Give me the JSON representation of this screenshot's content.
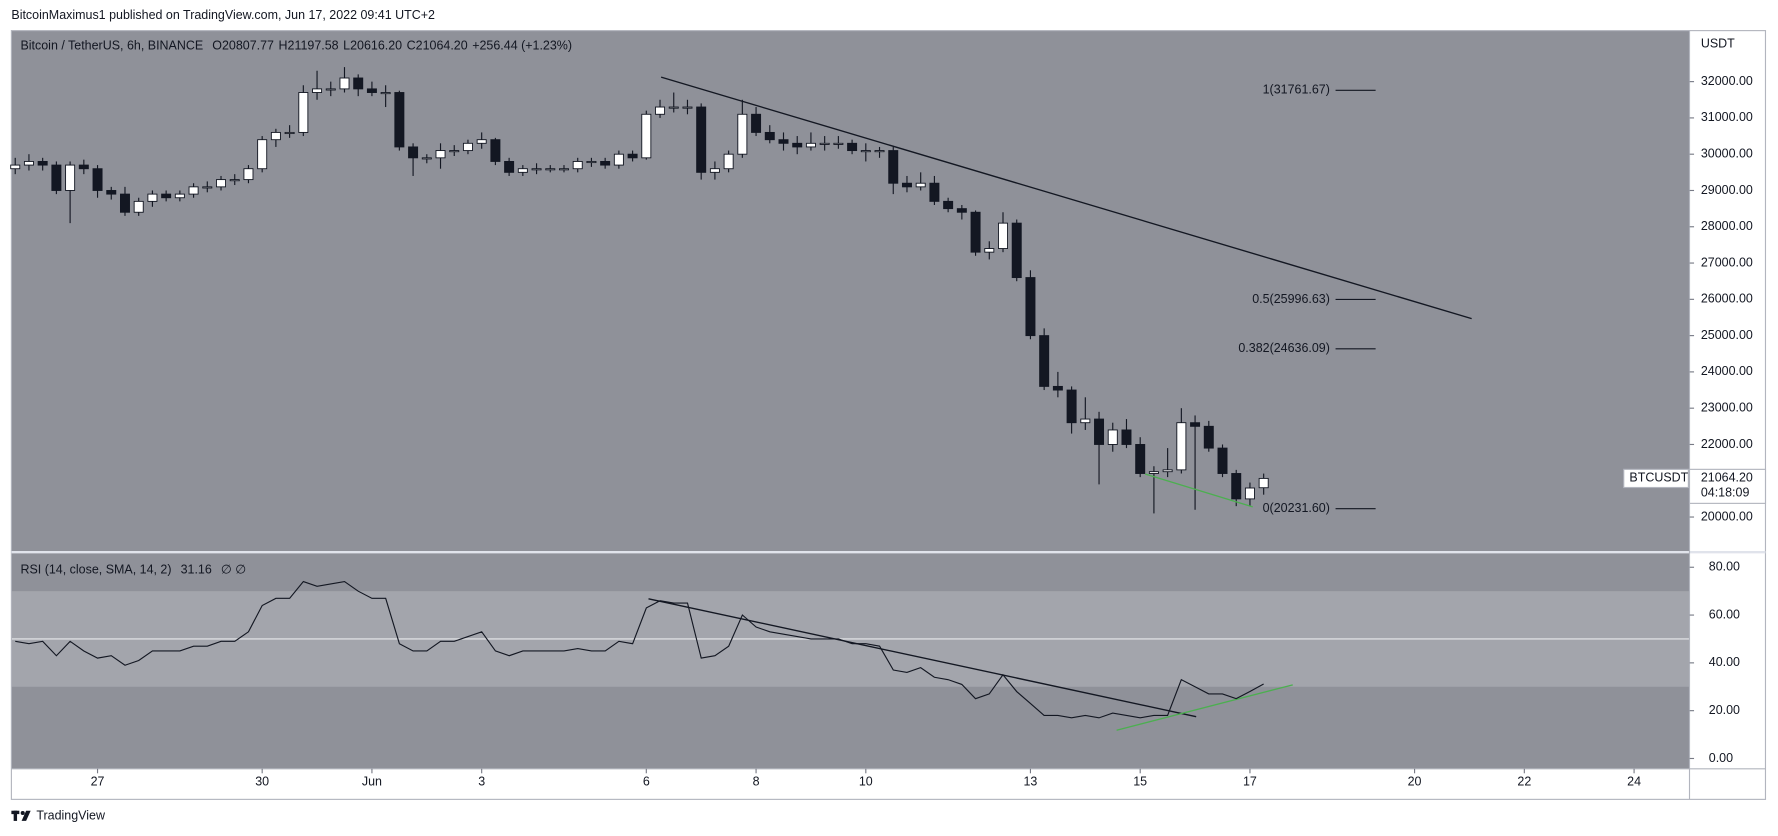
{
  "header": {
    "publisher": "BitcoinMaximus1 published on TradingView.com, Jun 17, 2022 09:41 UTC+2"
  },
  "chart_data": {
    "type": "candlestick",
    "symbol": "Bitcoin / TetherUS, 6h, BINANCE",
    "legend": [
      {
        "key": "O",
        "value": "20807.77"
      },
      {
        "key": "H",
        "value": "21197.58"
      },
      {
        "key": "L",
        "value": "20616.20"
      },
      {
        "key": "C",
        "value": "21064.20"
      }
    ],
    "change": "+256.44 (+1.23%)",
    "x": [
      -1.5,
      -1.25,
      -1,
      -0.75,
      -0.5,
      -0.25,
      0,
      0.25,
      0.5,
      0.75,
      1,
      1.25,
      1.5,
      1.75,
      2,
      2.25,
      2.5,
      2.75,
      3,
      3.25,
      3.5,
      3.75,
      4,
      4.25,
      4.5,
      4.75,
      5,
      5.25,
      5.5,
      5.75,
      6,
      6.25,
      6.5,
      6.75,
      7,
      7.25,
      7.5,
      7.75,
      8,
      8.25,
      8.5,
      8.75,
      9,
      9.25,
      9.5,
      9.75,
      10,
      10.25,
      10.5,
      10.75,
      11,
      11.25,
      11.5,
      11.75,
      12,
      12.25,
      12.5,
      12.75,
      13,
      13.25,
      13.5,
      13.75,
      14,
      14.25,
      14.5,
      14.75,
      15,
      15.25,
      15.5,
      15.75,
      16,
      16.25,
      16.5,
      16.75,
      17,
      17.25,
      17.5,
      17.75,
      18,
      18.25,
      18.5,
      18.75,
      19,
      19.25,
      19.5,
      19.75,
      20,
      20.25,
      20.5,
      20.75,
      21,
      21.25
    ],
    "ohlc": [
      [
        29600,
        29900,
        29450,
        29700
      ],
      [
        29700,
        30000,
        29550,
        29800
      ],
      [
        29800,
        29900,
        29550,
        29700
      ],
      [
        29700,
        29800,
        28900,
        29000
      ],
      [
        29000,
        29800,
        28100,
        29700
      ],
      [
        29700,
        29850,
        29450,
        29600
      ],
      [
        29600,
        29700,
        28800,
        29000
      ],
      [
        29000,
        29100,
        28750,
        28900
      ],
      [
        28900,
        29100,
        28300,
        28400
      ],
      [
        28400,
        28800,
        28300,
        28700
      ],
      [
        28700,
        29000,
        28550,
        28900
      ],
      [
        28900,
        29000,
        28700,
        28800
      ],
      [
        28800,
        29000,
        28700,
        28900
      ],
      [
        28900,
        29200,
        28800,
        29100
      ],
      [
        29100,
        29250,
        28950,
        29100
      ],
      [
        29100,
        29400,
        29000,
        29300
      ],
      [
        29300,
        29450,
        29150,
        29300
      ],
      [
        29300,
        29700,
        29200,
        29600
      ],
      [
        29600,
        30500,
        29500,
        30400
      ],
      [
        30400,
        30700,
        30200,
        30600
      ],
      [
        30600,
        30800,
        30450,
        30600
      ],
      [
        30600,
        31900,
        30500,
        31700
      ],
      [
        31700,
        32300,
        31500,
        31800
      ],
      [
        31800,
        32000,
        31600,
        31800
      ],
      [
        31800,
        32400,
        31700,
        32100
      ],
      [
        32100,
        32200,
        31600,
        31800
      ],
      [
        31800,
        32000,
        31600,
        31700
      ],
      [
        31700,
        31900,
        31300,
        31700
      ],
      [
        31700,
        31750,
        30100,
        30200
      ],
      [
        30200,
        30300,
        29400,
        29900
      ],
      [
        29900,
        30000,
        29750,
        29900
      ],
      [
        29900,
        30300,
        29600,
        30100
      ],
      [
        30100,
        30250,
        29950,
        30100
      ],
      [
        30100,
        30400,
        30000,
        30300
      ],
      [
        30300,
        30600,
        30150,
        30400
      ],
      [
        30400,
        30450,
        29700,
        29800
      ],
      [
        29800,
        29900,
        29400,
        29500
      ],
      [
        29500,
        29700,
        29400,
        29600
      ],
      [
        29600,
        29750,
        29450,
        29600
      ],
      [
        29600,
        29700,
        29500,
        29600
      ],
      [
        29600,
        29700,
        29500,
        29600
      ],
      [
        29600,
        29900,
        29500,
        29800
      ],
      [
        29800,
        29900,
        29650,
        29800
      ],
      [
        29800,
        29900,
        29600,
        29700
      ],
      [
        29700,
        30100,
        29600,
        30000
      ],
      [
        30000,
        30100,
        29800,
        29900
      ],
      [
        29900,
        31200,
        29850,
        31100
      ],
      [
        31100,
        31500,
        31000,
        31300
      ],
      [
        31300,
        31700,
        31150,
        31300
      ],
      [
        31300,
        31500,
        31100,
        31300
      ],
      [
        31300,
        31400,
        29300,
        29500
      ],
      [
        29500,
        29800,
        29300,
        29600
      ],
      [
        29600,
        30100,
        29500,
        30000
      ],
      [
        30000,
        31500,
        29900,
        31100
      ],
      [
        31100,
        31300,
        30500,
        30600
      ],
      [
        30600,
        30800,
        30300,
        30400
      ],
      [
        30400,
        30600,
        30100,
        30300
      ],
      [
        30300,
        30500,
        30000,
        30200
      ],
      [
        30200,
        30600,
        30100,
        30300
      ],
      [
        30300,
        30500,
        30100,
        30300
      ],
      [
        30300,
        30500,
        30150,
        30300
      ],
      [
        30300,
        30400,
        30000,
        30100
      ],
      [
        30100,
        30300,
        29800,
        30100
      ],
      [
        30100,
        30200,
        29900,
        30100
      ],
      [
        30100,
        30200,
        28900,
        29200
      ],
      [
        29200,
        29400,
        28950,
        29100
      ],
      [
        29100,
        29500,
        29000,
        29200
      ],
      [
        29200,
        29400,
        28600,
        28700
      ],
      [
        28700,
        28800,
        28400,
        28500
      ],
      [
        28500,
        28600,
        28200,
        28400
      ],
      [
        28400,
        28450,
        27200,
        27300
      ],
      [
        27300,
        27600,
        27100,
        27400
      ],
      [
        27400,
        28400,
        27300,
        28100
      ],
      [
        28100,
        28200,
        26500,
        26600
      ],
      [
        26600,
        26800,
        24900,
        25000
      ],
      [
        25000,
        25200,
        23500,
        23600
      ],
      [
        23600,
        24000,
        23300,
        23500
      ],
      [
        23500,
        23600,
        22300,
        22600
      ],
      [
        22600,
        23300,
        22400,
        22700
      ],
      [
        22700,
        22900,
        20900,
        22000
      ],
      [
        22000,
        22600,
        21800,
        22400
      ],
      [
        22400,
        22700,
        21900,
        22000
      ],
      [
        22000,
        22200,
        21100,
        21200
      ],
      [
        21200,
        21400,
        20100,
        21250
      ],
      [
        21250,
        21900,
        21100,
        21300
      ],
      [
        21300,
        23000,
        21200,
        22600
      ],
      [
        22600,
        22800,
        20200,
        22500
      ],
      [
        22500,
        22650,
        21800,
        21900
      ],
      [
        21900,
        22000,
        21100,
        21200
      ],
      [
        21200,
        21300,
        20300,
        20500
      ],
      [
        20500,
        20950,
        20300,
        20800
      ],
      [
        20807.77,
        21197.58,
        20616.2,
        21064.2
      ]
    ],
    "up_color": "#ffffff",
    "down_color": "#131722",
    "background": "#8f9199",
    "xlim": [
      -1.57,
      29.01
    ],
    "xticks": [
      {
        "value": 0,
        "label": "27"
      },
      {
        "value": 3,
        "label": "30"
      },
      {
        "value": 5,
        "label": "Jun"
      },
      {
        "value": 7,
        "label": "3"
      },
      {
        "value": 10,
        "label": "6"
      },
      {
        "value": 12,
        "label": "8"
      },
      {
        "value": 14,
        "label": "10"
      },
      {
        "value": 17,
        "label": "13"
      },
      {
        "value": 19,
        "label": "15"
      },
      {
        "value": 21,
        "label": "17"
      },
      {
        "value": 24,
        "label": "20"
      },
      {
        "value": 26,
        "label": "22"
      },
      {
        "value": 28,
        "label": "24"
      }
    ],
    "ylim": [
      19031,
      33406
    ],
    "yticks": [
      {
        "value": 20000,
        "label": "20000.00"
      },
      {
        "value": 21000,
        "label": "21000.00"
      },
      {
        "value": 22000,
        "label": "22000.00"
      },
      {
        "value": 23000,
        "label": "23000.00"
      },
      {
        "value": 24000,
        "label": "24000.00"
      },
      {
        "value": 25000,
        "label": "25000.00"
      },
      {
        "value": 26000,
        "label": "26000.00"
      },
      {
        "value": 27000,
        "label": "27000.00"
      },
      {
        "value": 28000,
        "label": "28000.00"
      },
      {
        "value": 29000,
        "label": "29000.00"
      },
      {
        "value": 30000,
        "label": "30000.00"
      },
      {
        "value": 31000,
        "label": "31000.00"
      },
      {
        "value": 32000,
        "label": "32000.00"
      }
    ],
    "y_axis_label": "USDT",
    "trendlines": [
      {
        "x": [
          10.27,
          25.04
        ],
        "y": [
          32125,
          25469
        ],
        "color": "#131722"
      },
      {
        "x": [
          19.09,
          21.05
        ],
        "y": [
          21187,
          20281
        ],
        "color": "#4caf50"
      }
    ],
    "fib": {
      "x": [
        22.56,
        23.29
      ],
      "levels": [
        {
          "label": "1(31761.67)",
          "value": 31761.67
        },
        {
          "label": "0.5(25996.63)",
          "value": 25996.63
        },
        {
          "label": "0.382(24636.09)",
          "value": 24636.09
        },
        {
          "label": "0(20231.60)",
          "value": 20231.6
        }
      ]
    },
    "price_tag": {
      "symbol": "BTCUSDT",
      "label": "21064.20",
      "countdown": "04:18:09"
    },
    "rsi": {
      "title": "RSI (14, close, SMA, 14, 2)",
      "value_label": "31.16",
      "extra": "∅  ∅",
      "values": [
        49,
        48,
        49,
        43,
        49,
        45,
        42,
        43,
        39,
        41,
        45,
        45,
        45,
        47,
        47,
        49,
        49,
        53,
        64,
        67,
        67,
        74,
        72,
        73,
        74,
        70,
        67,
        67,
        48,
        45,
        45,
        49,
        49,
        51,
        53,
        45,
        43,
        45,
        45,
        45,
        45,
        46,
        45,
        45,
        49,
        48,
        63,
        66,
        65,
        65,
        42,
        43,
        47,
        60,
        55,
        53,
        52,
        51,
        50,
        50,
        50,
        48,
        48,
        47,
        37,
        36,
        38,
        34,
        33,
        31,
        25,
        27,
        35,
        28,
        23,
        18,
        18,
        17,
        18,
        17,
        19,
        18,
        17,
        18,
        18,
        33,
        30,
        27,
        27,
        25,
        28,
        31.16
      ],
      "color": "#131722",
      "ylim": [
        -4.3,
        86.3
      ],
      "yticks": [
        {
          "value": 0,
          "label": "0.00"
        },
        {
          "value": 20,
          "label": "20.00"
        },
        {
          "value": 40,
          "label": "40.00"
        },
        {
          "value": 60,
          "label": "60.00"
        },
        {
          "value": 80,
          "label": "80.00"
        }
      ],
      "bands": [
        30,
        70
      ],
      "mid": 50,
      "trendlines": [
        {
          "x": [
            10.04,
            20.02
          ],
          "y": [
            66.8,
            17.5
          ],
          "color": "#131722"
        },
        {
          "x": [
            18.57,
            21.78
          ],
          "y": [
            11.8,
            30.8
          ],
          "color": "#4caf50"
        }
      ]
    }
  },
  "footer": {
    "brand": "TradingView"
  }
}
